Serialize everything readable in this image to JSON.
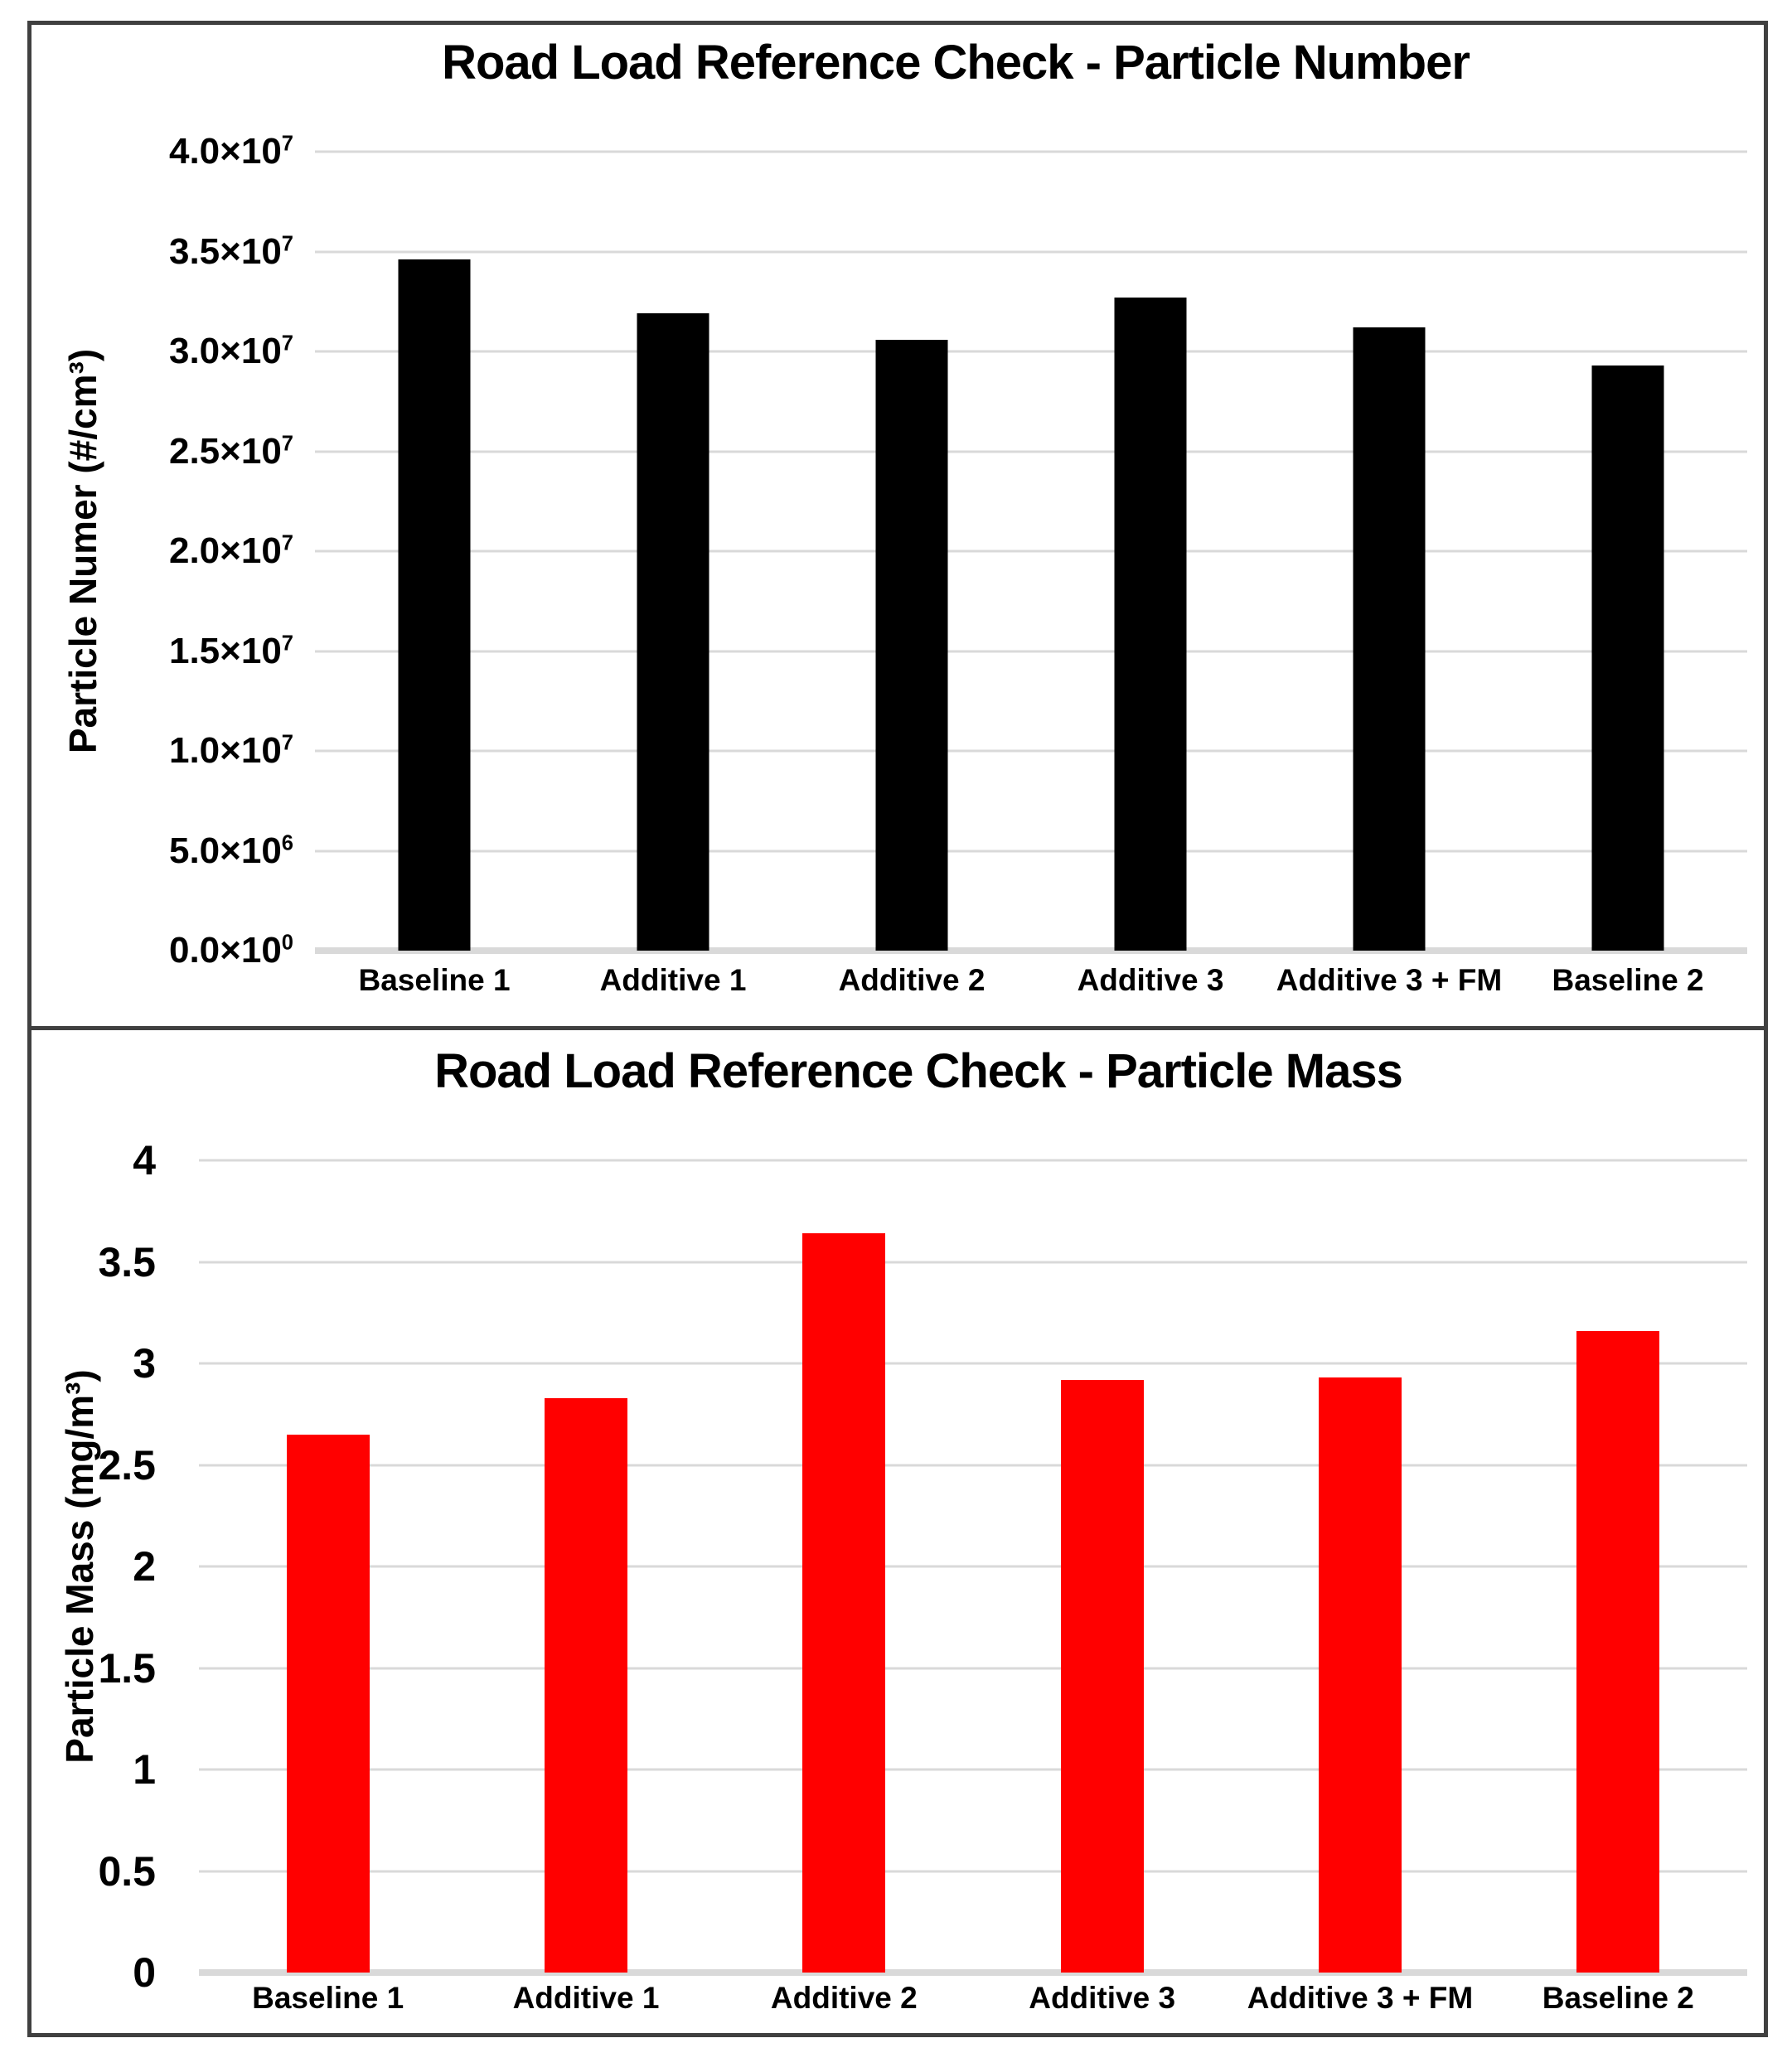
{
  "page": {
    "background_color": "#ffffff",
    "frame_border_color": "#404040",
    "gridline_color": "#d9d9d9"
  },
  "chart_data": [
    {
      "type": "bar",
      "title": "Road Load Reference Check - Particle Number",
      "ylabel": "Particle Numer (#/cm³)",
      "xlabel": "",
      "categories": [
        "Baseline 1",
        "Additive 1",
        "Additive 2",
        "Additive 3",
        "Additive 3 + FM",
        "Baseline 2"
      ],
      "values": [
        34600000,
        31900000,
        30600000,
        32700000,
        31200000,
        29300000
      ],
      "ylim": [
        0,
        40000000
      ],
      "ytick_step": 5000000,
      "yticks_top_to_bottom": [
        {
          "text": "4.0×10",
          "sup": "7"
        },
        {
          "text": "3.5×10",
          "sup": "7"
        },
        {
          "text": "3.0×10",
          "sup": "7"
        },
        {
          "text": "2.5×10",
          "sup": "7"
        },
        {
          "text": "2.0×10",
          "sup": "7"
        },
        {
          "text": "1.5×10",
          "sup": "7"
        },
        {
          "text": "1.0×10",
          "sup": "7"
        },
        {
          "text": "5.0×10",
          "sup": "6"
        },
        {
          "text": "0.0×10",
          "sup": "0"
        }
      ],
      "bar_color": "#000000",
      "grid": true,
      "legend": false
    },
    {
      "type": "bar",
      "title": "Road Load Reference Check - Particle Mass",
      "ylabel": "Particle Mass (mg/m³)",
      "xlabel": "",
      "categories": [
        "Baseline 1",
        "Additive 1",
        "Additive 2",
        "Additive 3",
        "Additive 3 + FM",
        "Baseline 2"
      ],
      "values": [
        2.65,
        2.83,
        3.64,
        2.92,
        2.93,
        3.16
      ],
      "ylim": [
        0,
        4
      ],
      "ytick_step": 0.5,
      "yticks_top_to_bottom": [
        {
          "text": "4",
          "sup": ""
        },
        {
          "text": "3.5",
          "sup": ""
        },
        {
          "text": "3",
          "sup": ""
        },
        {
          "text": "2.5",
          "sup": ""
        },
        {
          "text": "2",
          "sup": ""
        },
        {
          "text": "1.5",
          "sup": ""
        },
        {
          "text": "1",
          "sup": ""
        },
        {
          "text": "0.5",
          "sup": ""
        },
        {
          "text": "0",
          "sup": ""
        }
      ],
      "bar_color": "#ff0000",
      "grid": true,
      "legend": false
    }
  ]
}
